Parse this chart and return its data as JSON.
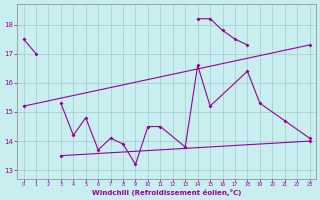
{
  "background_color": "#c8eef0",
  "grid_color": "#a0cccc",
  "line_color": "#990099",
  "ylim": [
    12.7,
    18.7
  ],
  "xlim": [
    -0.5,
    23.5
  ],
  "yticks": [
    13,
    14,
    15,
    16,
    17,
    18
  ],
  "xticks": [
    0,
    1,
    2,
    3,
    4,
    5,
    6,
    7,
    8,
    9,
    10,
    11,
    12,
    13,
    14,
    15,
    16,
    17,
    18,
    19,
    20,
    21,
    22,
    23
  ],
  "xlabel": "Windchill (Refroidissement éolien,°C)",
  "line1_x": [
    0,
    1
  ],
  "line1_y": [
    17.5,
    17.0
  ],
  "line2_x": [
    3,
    4,
    5,
    6,
    7,
    8,
    9,
    10,
    11,
    13,
    14,
    15,
    18,
    19,
    21,
    23
  ],
  "line2_y": [
    15.3,
    14.2,
    14.8,
    13.7,
    14.1,
    13.9,
    13.2,
    14.5,
    14.5,
    13.8,
    16.6,
    15.2,
    16.4,
    15.3,
    14.7,
    14.1
  ],
  "line3_x": [
    3,
    23
  ],
  "line3_y": [
    13.5,
    14.0
  ],
  "line4_x": [
    0,
    23
  ],
  "line4_y": [
    15.2,
    17.3
  ],
  "line5_x": [
    14,
    15,
    16,
    17,
    18
  ],
  "line5_y": [
    18.2,
    18.2,
    17.8,
    17.5,
    17.3
  ]
}
